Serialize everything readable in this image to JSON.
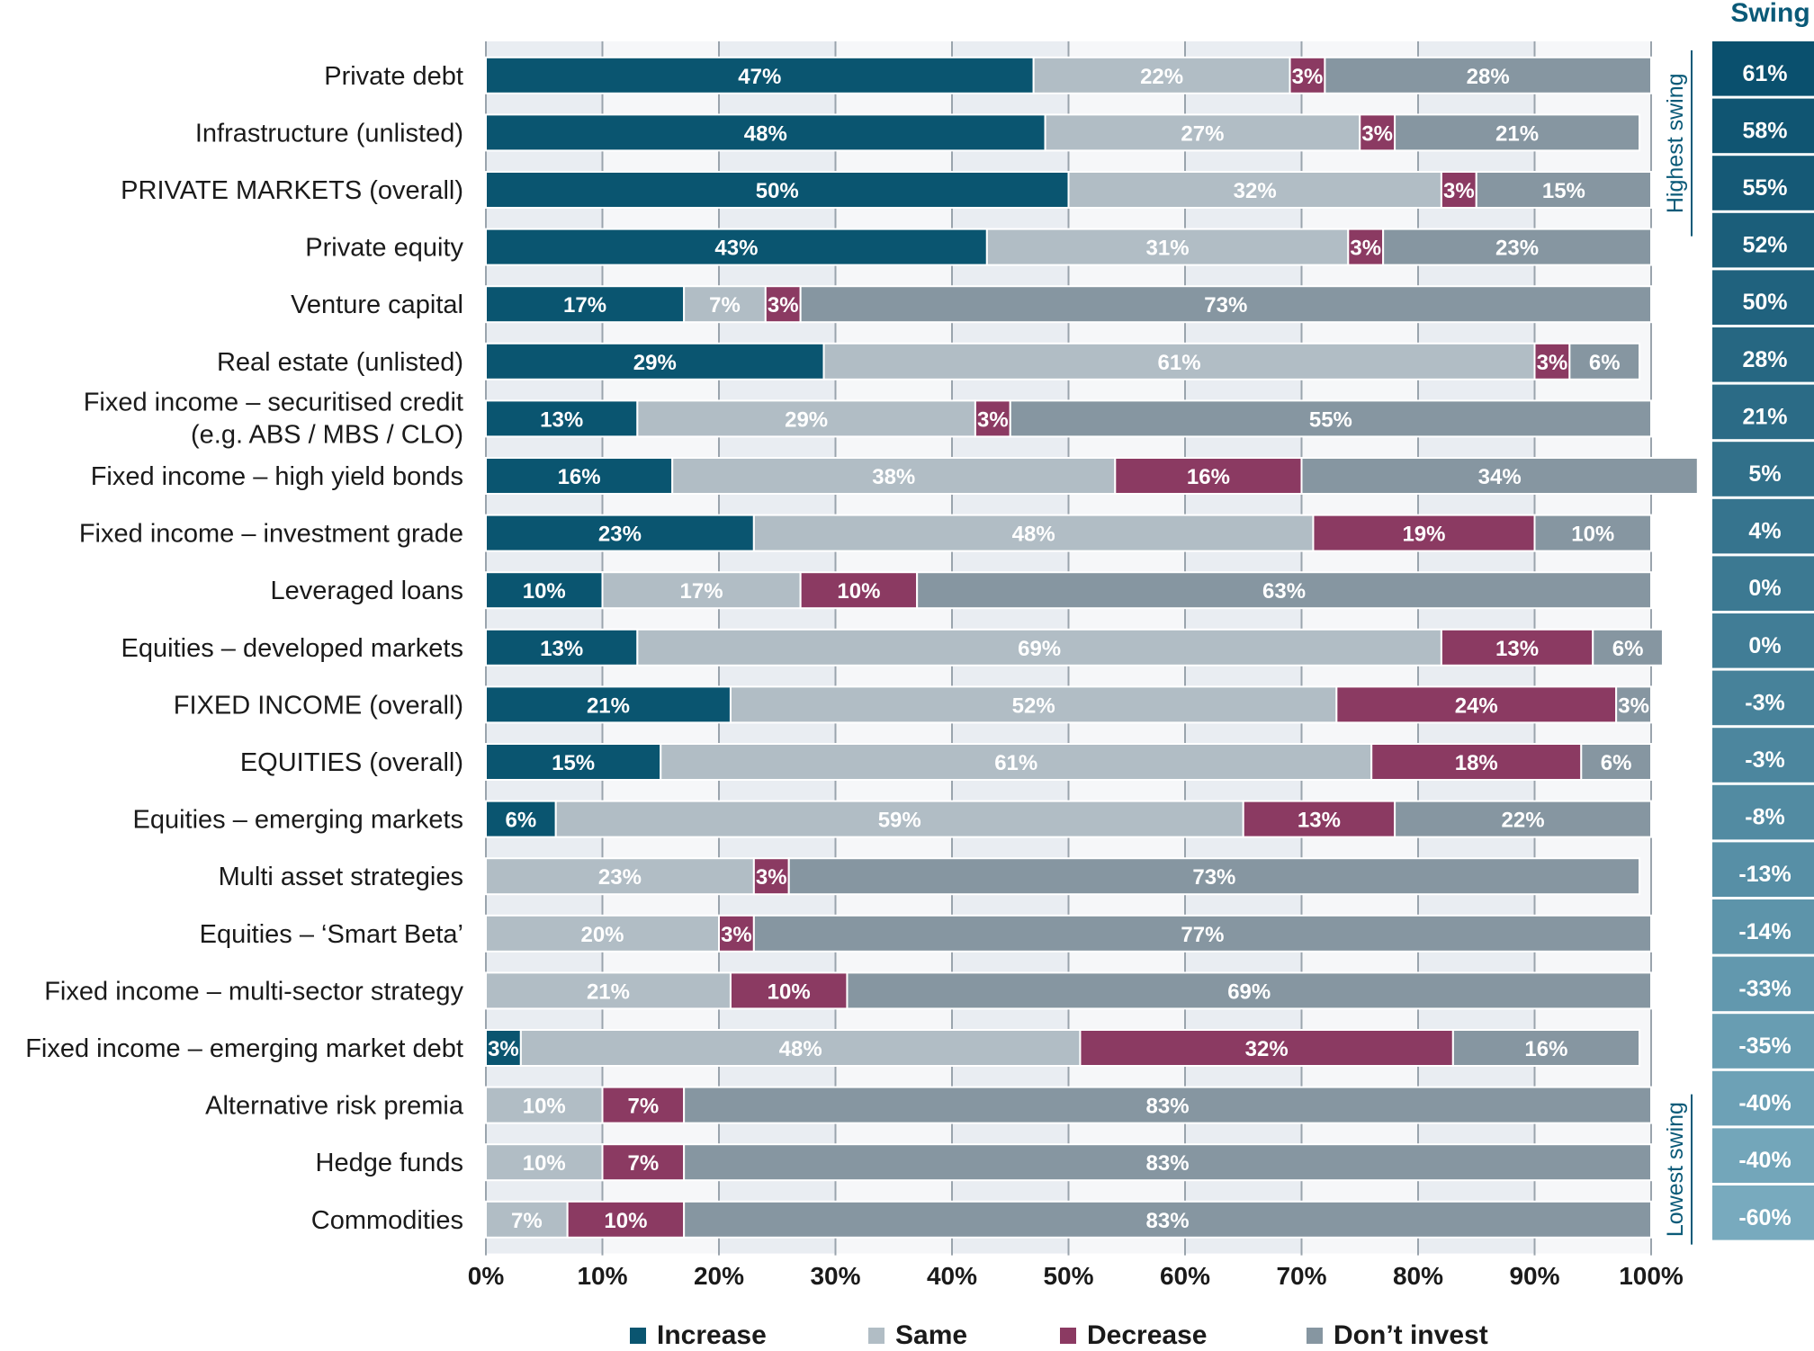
{
  "chart_data": {
    "type": "bar",
    "orientation": "horizontal",
    "stacked": true,
    "categories": [
      "Private debt",
      "Infrastructure (unlisted)",
      "PRIVATE MARKETS (overall)",
      "Private equity",
      "Venture capital",
      "Real estate (unlisted)",
      "Fixed income – securitised credit|(e.g. ABS / MBS / CLO)",
      "Fixed income – high yield bonds",
      "Fixed income – investment grade",
      "Leveraged loans",
      "Equities – developed markets",
      "FIXED INCOME (overall)",
      "EQUITIES (overall)",
      "Equities – emerging markets",
      "Multi asset strategies",
      "Equities – ‘Smart Beta’",
      "Fixed income – multi-sector strategy",
      "Fixed income – emerging market debt",
      "Alternative risk premia",
      "Hedge funds",
      "Commodities"
    ],
    "series": [
      {
        "name": "Increase",
        "color": "#0a5570",
        "values": [
          47,
          48,
          50,
          43,
          17,
          29,
          13,
          16,
          23,
          10,
          13,
          21,
          15,
          6,
          0,
          0,
          0,
          3,
          0,
          0,
          0
        ]
      },
      {
        "name": "Same",
        "color": "#b1bdc5",
        "values": [
          22,
          27,
          32,
          31,
          7,
          61,
          29,
          38,
          48,
          17,
          69,
          52,
          61,
          59,
          23,
          20,
          21,
          48,
          10,
          10,
          7
        ]
      },
      {
        "name": "Decrease",
        "color": "#8b3a62",
        "values": [
          3,
          3,
          3,
          3,
          3,
          3,
          3,
          16,
          19,
          10,
          13,
          24,
          18,
          13,
          3,
          3,
          10,
          32,
          7,
          7,
          10
        ]
      },
      {
        "name": "Don’t invest",
        "color": "#8696a1",
        "values": [
          28,
          21,
          15,
          23,
          73,
          6,
          55,
          34,
          10,
          63,
          6,
          3,
          6,
          22,
          73,
          77,
          69,
          16,
          83,
          83,
          83
        ]
      }
    ],
    "swing": {
      "title": "Swing",
      "values": [
        "61%",
        "58%",
        "55%",
        "52%",
        "50%",
        "28%",
        "21%",
        "5%",
        "4%",
        "0%",
        "0%",
        "-3%",
        "-3%",
        "-8%",
        "-13%",
        "-14%",
        "-33%",
        "-35%",
        "-40%",
        "-40%",
        "-60%"
      ]
    },
    "side_labels": {
      "top": "Highest swing",
      "bottom": "Lowest swing"
    },
    "xlim": [
      0,
      100
    ],
    "x_ticks": [
      "0%",
      "10%",
      "20%",
      "30%",
      "40%",
      "50%",
      "60%",
      "70%",
      "80%",
      "90%",
      "100%"
    ],
    "grid": true,
    "legend_position": "bottom"
  }
}
